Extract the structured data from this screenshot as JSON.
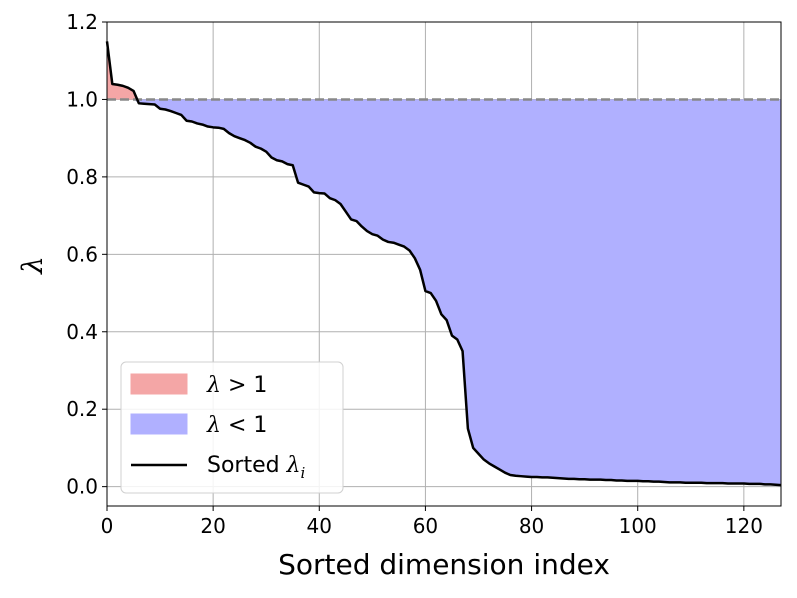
{
  "chart_data": {
    "type": "area",
    "xlabel": "Sorted dimension index",
    "ylabel": "λ",
    "xlim": [
      0,
      127
    ],
    "ylim": [
      -0.05,
      1.2
    ],
    "xticks": [
      0,
      20,
      40,
      60,
      80,
      100,
      120
    ],
    "yticks": [
      0.0,
      0.2,
      0.4,
      0.6,
      0.8,
      1.0,
      1.2
    ],
    "xtick_labels": [
      "0",
      "20",
      "40",
      "60",
      "80",
      "100",
      "120"
    ],
    "ytick_labels": [
      "0.0",
      "0.2",
      "0.4",
      "0.6",
      "0.8",
      "1.0",
      "1.2"
    ],
    "grid": true,
    "reference_line": {
      "y": 1.0,
      "style": "dashed",
      "color": "#888888"
    },
    "legend": {
      "placement": "lower-left",
      "entries": [
        {
          "label": "λ > 1",
          "color": "#f4a6a6",
          "kind": "patch"
        },
        {
          "label": "λ < 1",
          "color": "#b0b0ff",
          "kind": "patch"
        },
        {
          "label": "Sorted λ_i",
          "color": "#000000",
          "kind": "line"
        }
      ]
    },
    "fill_above_color": "#f4a6a6",
    "fill_below_color": "#b0b0ff",
    "series": [
      {
        "name": "Sorted λ_i",
        "x": [
          0,
          1,
          2,
          3,
          4,
          5,
          6,
          7,
          8,
          9,
          10,
          11,
          12,
          13,
          14,
          15,
          16,
          17,
          18,
          19,
          20,
          21,
          22,
          23,
          24,
          25,
          26,
          27,
          28,
          29,
          30,
          31,
          32,
          33,
          34,
          35,
          36,
          37,
          38,
          39,
          40,
          41,
          42,
          43,
          44,
          45,
          46,
          47,
          48,
          49,
          50,
          51,
          52,
          53,
          54,
          55,
          56,
          57,
          58,
          59,
          60,
          61,
          62,
          63,
          64,
          65,
          66,
          67,
          68,
          69,
          70,
          71,
          72,
          73,
          74,
          75,
          76,
          77,
          78,
          79,
          80,
          81,
          82,
          83,
          84,
          85,
          86,
          87,
          88,
          89,
          90,
          91,
          92,
          93,
          94,
          95,
          96,
          97,
          98,
          99,
          100,
          101,
          102,
          103,
          104,
          105,
          106,
          107,
          108,
          109,
          110,
          111,
          112,
          113,
          114,
          115,
          116,
          117,
          118,
          119,
          120,
          121,
          122,
          123,
          124,
          125,
          126,
          127
        ],
        "y": [
          1.15,
          1.04,
          1.038,
          1.035,
          1.03,
          1.022,
          0.99,
          0.989,
          0.988,
          0.987,
          0.976,
          0.974,
          0.97,
          0.965,
          0.96,
          0.945,
          0.943,
          0.938,
          0.935,
          0.93,
          0.928,
          0.927,
          0.924,
          0.913,
          0.905,
          0.9,
          0.895,
          0.888,
          0.878,
          0.873,
          0.865,
          0.85,
          0.843,
          0.84,
          0.833,
          0.83,
          0.785,
          0.78,
          0.775,
          0.76,
          0.758,
          0.757,
          0.745,
          0.74,
          0.73,
          0.71,
          0.69,
          0.686,
          0.672,
          0.66,
          0.652,
          0.648,
          0.638,
          0.632,
          0.63,
          0.625,
          0.62,
          0.61,
          0.59,
          0.56,
          0.505,
          0.5,
          0.48,
          0.445,
          0.43,
          0.39,
          0.38,
          0.35,
          0.15,
          0.1,
          0.085,
          0.07,
          0.06,
          0.052,
          0.044,
          0.036,
          0.03,
          0.028,
          0.027,
          0.026,
          0.025,
          0.025,
          0.024,
          0.024,
          0.023,
          0.022,
          0.021,
          0.02,
          0.02,
          0.019,
          0.019,
          0.018,
          0.018,
          0.018,
          0.017,
          0.017,
          0.016,
          0.016,
          0.015,
          0.015,
          0.015,
          0.014,
          0.014,
          0.013,
          0.013,
          0.012,
          0.011,
          0.011,
          0.011,
          0.01,
          0.01,
          0.01,
          0.01,
          0.009,
          0.009,
          0.009,
          0.009,
          0.008,
          0.008,
          0.008,
          0.008,
          0.007,
          0.007,
          0.007,
          0.006,
          0.006,
          0.005,
          0.004
        ]
      }
    ]
  }
}
